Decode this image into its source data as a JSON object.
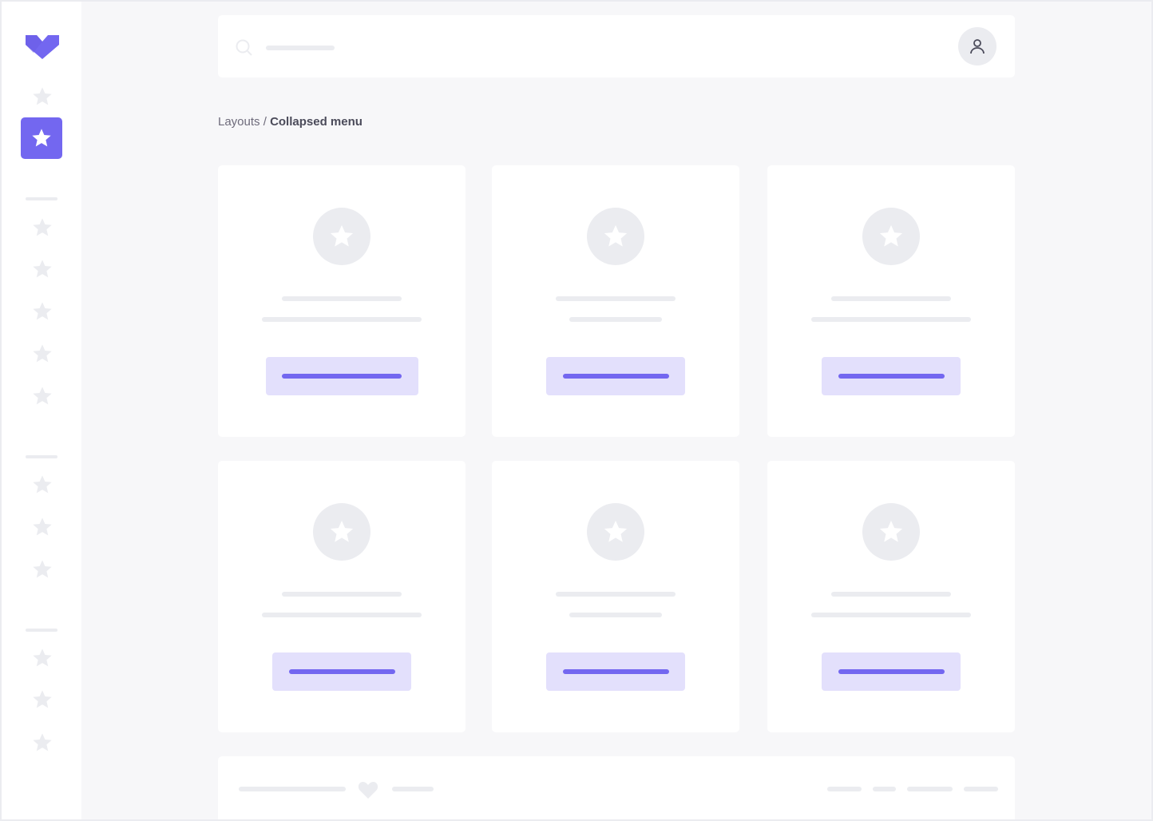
{
  "breadcrumb": {
    "parent": "Layouts",
    "separator": "/",
    "current": "Collapsed menu"
  },
  "colors": {
    "accent": "#7367f0",
    "accent_light": "#e3e0fc",
    "placeholder": "#ebecf0",
    "background": "#f7f7f9"
  },
  "sidebar": {
    "active_index": 1,
    "icons": "star-icon"
  },
  "cards": [
    {
      "icon": "star-icon"
    },
    {
      "icon": "star-icon"
    },
    {
      "icon": "star-icon"
    },
    {
      "icon": "star-icon"
    },
    {
      "icon": "star-icon"
    },
    {
      "icon": "star-icon"
    }
  ],
  "footer": {
    "icon": "heart-icon"
  }
}
